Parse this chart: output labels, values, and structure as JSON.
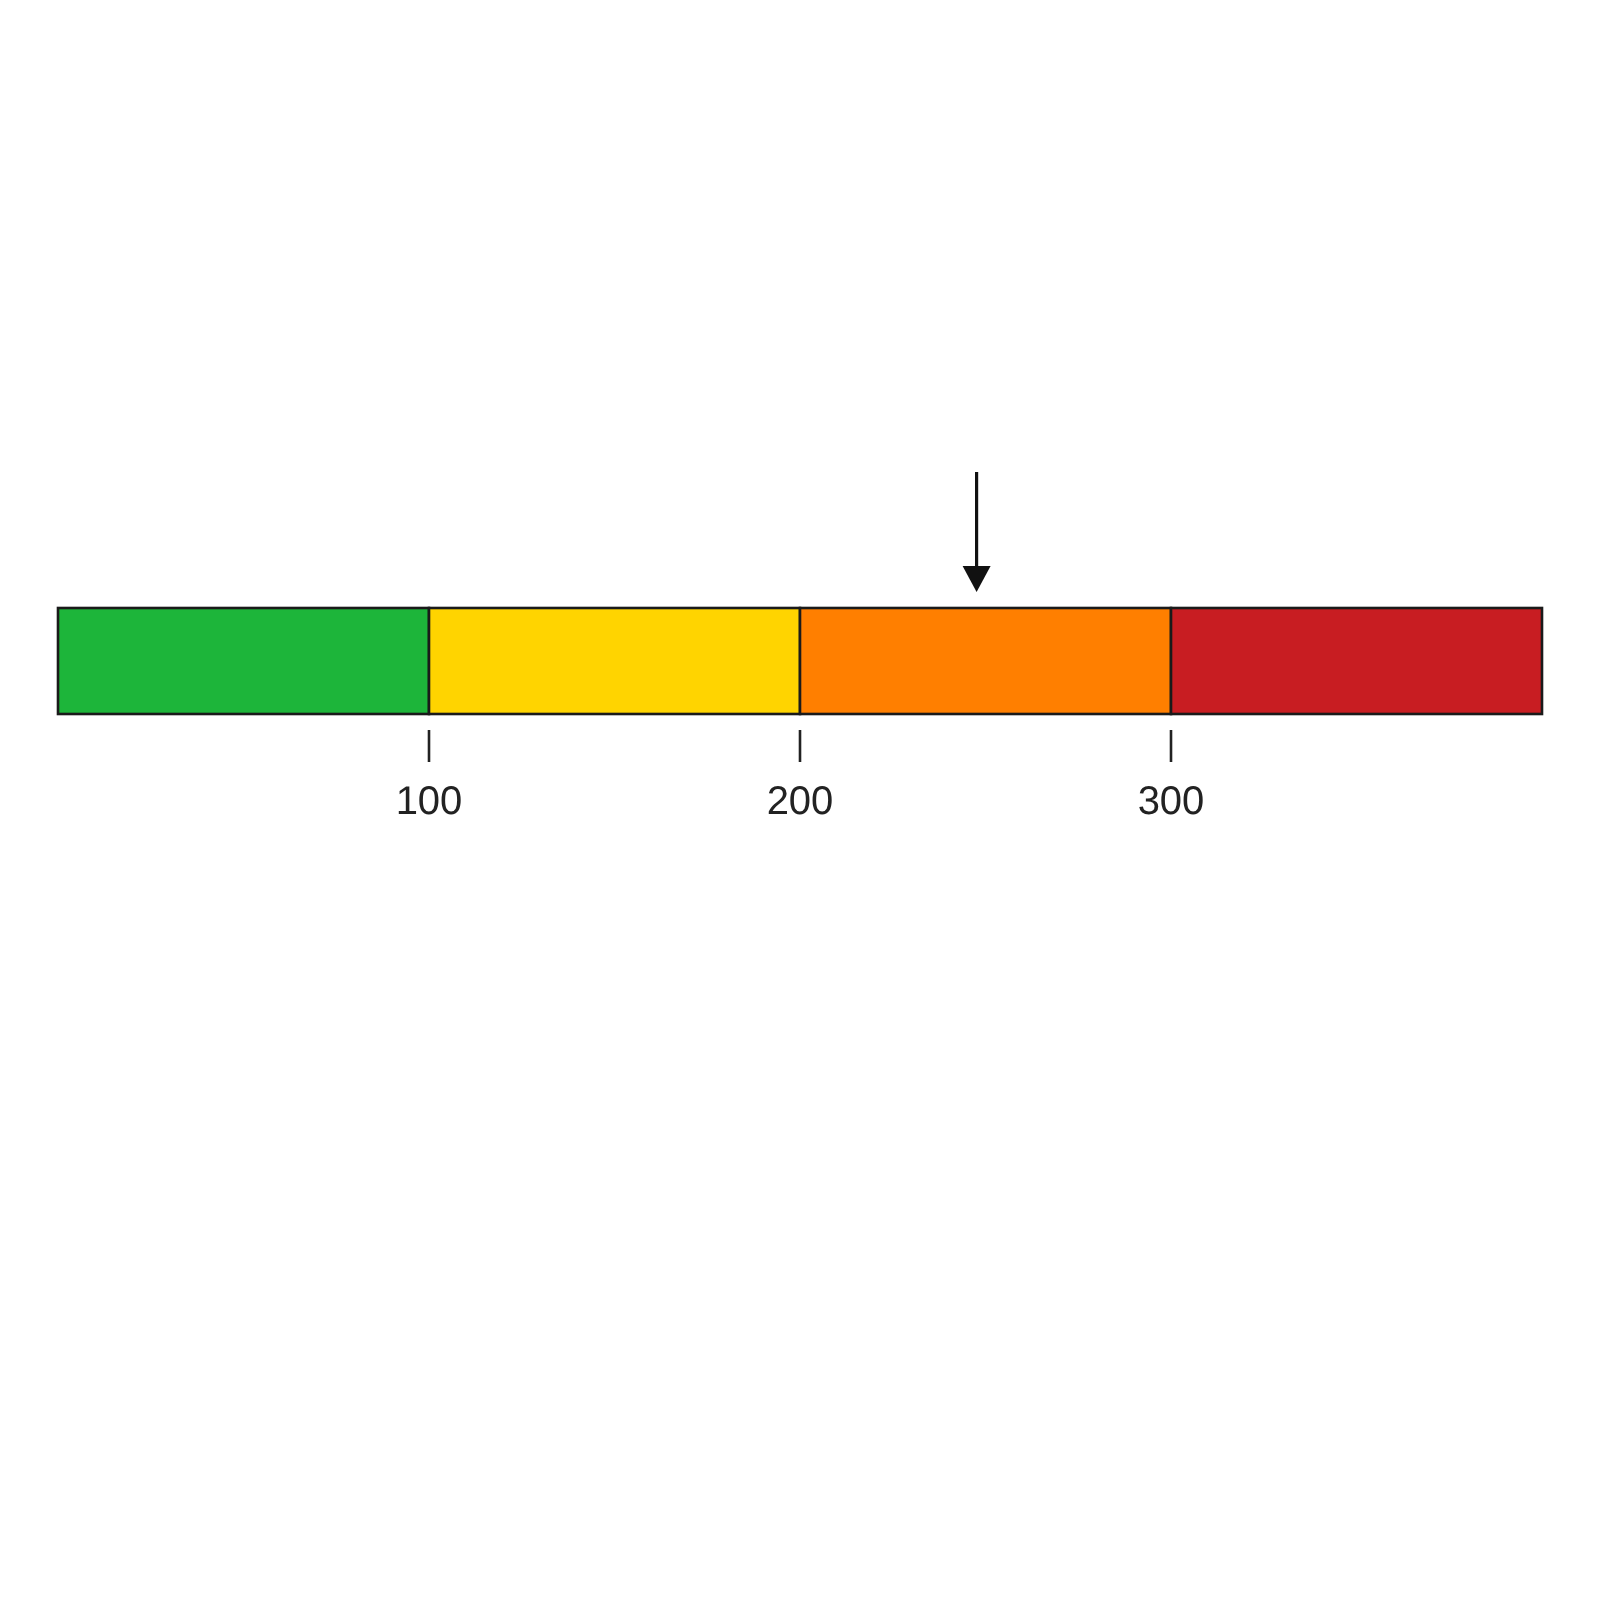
{
  "chart_data": {
    "type": "bar",
    "orientation": "horizontal",
    "stacked": true,
    "categories": [
      null
    ],
    "series": [
      {
        "color": "#1db53a",
        "values": [
          100
        ]
      },
      {
        "color": "#ffd400",
        "values": [
          100
        ]
      },
      {
        "color": "#ff7f00",
        "values": [
          100
        ]
      },
      {
        "color": "#c81d22",
        "values": [
          100
        ]
      }
    ],
    "xlim": [
      0,
      400
    ],
    "xticks": [
      100,
      200,
      300
    ]
  }
}
